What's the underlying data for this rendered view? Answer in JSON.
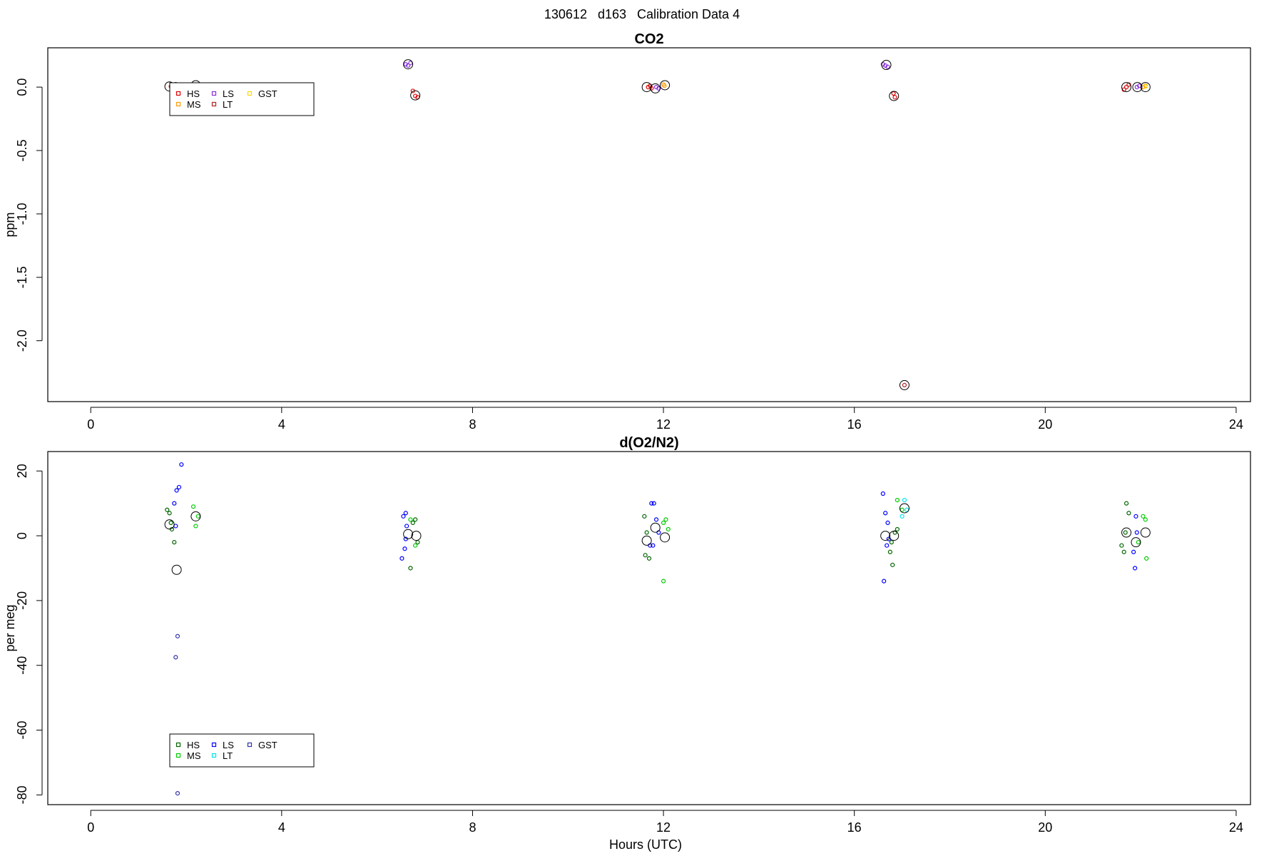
{
  "figure_title": "130612   d163   Calibration Data 4",
  "xlabel": "Hours (UTC)",
  "chart_data": [
    {
      "type": "scatter",
      "title": "CO2",
      "ylabel": "ppm",
      "xlim": [
        -0.9,
        24.3
      ],
      "ylim": [
        -2.48,
        0.31
      ],
      "xticks": [
        0,
        4,
        8,
        12,
        16,
        20,
        24
      ],
      "yticks": [
        0.0,
        -0.5,
        -1.0,
        -1.5,
        -2.0
      ],
      "ytick_labels": [
        "0.0",
        "-0.5",
        "-1.0",
        "-1.5",
        "-2.0"
      ],
      "legend": {
        "placement": "top-left",
        "items": [
          {
            "label": "HS",
            "color": "#dd0000"
          },
          {
            "label": "MS",
            "color": "#ff9900"
          },
          {
            "label": "LS",
            "color": "#8a2be2"
          },
          {
            "label": "LT",
            "color": "#b22222"
          },
          {
            "label": "GST",
            "color": "#ffd700"
          }
        ]
      },
      "series": [
        {
          "name": "HS",
          "color": "#dd0000",
          "points": [
            [
              1.68,
              0.005
            ],
            [
              1.72,
              -0.005
            ],
            [
              6.75,
              -0.03
            ],
            [
              6.8,
              -0.07
            ],
            [
              6.85,
              -0.08
            ],
            [
              11.68,
              0.0
            ],
            [
              11.72,
              0.01
            ],
            [
              11.75,
              -0.01
            ],
            [
              16.82,
              -0.05
            ],
            [
              16.85,
              -0.08
            ],
            [
              21.65,
              -0.02
            ],
            [
              21.7,
              0.0
            ],
            [
              21.75,
              0.02
            ]
          ]
        },
        {
          "name": "MS",
          "color": "#ff9900",
          "points": [
            [
              2.18,
              0.02
            ],
            [
              2.22,
              0.0
            ],
            [
              12.0,
              0.02
            ],
            [
              12.02,
              0.01
            ],
            [
              22.05,
              0.0
            ],
            [
              22.1,
              0.01
            ]
          ]
        },
        {
          "name": "LS",
          "color": "#8a2be2",
          "points": [
            [
              6.6,
              0.18
            ],
            [
              6.65,
              0.17
            ],
            [
              6.7,
              0.19
            ],
            [
              11.85,
              0.0
            ],
            [
              11.9,
              -0.01
            ],
            [
              16.6,
              0.18
            ],
            [
              16.65,
              0.17
            ],
            [
              16.7,
              0.16
            ],
            [
              21.92,
              0.0
            ],
            [
              21.97,
              0.01
            ]
          ]
        },
        {
          "name": "LT",
          "color": "#b22222",
          "points": [
            [
              17.05,
              -2.35
            ],
            [
              1.88,
              0.0
            ]
          ]
        },
        {
          "name": "GST",
          "color": "#ffd700",
          "points": [
            [
              2.2,
              0.015
            ],
            [
              22.1,
              0.005
            ]
          ]
        }
      ],
      "means": [
        [
          1.65,
          0.005
        ],
        [
          1.78,
          0.0
        ],
        [
          2.2,
          0.015
        ],
        [
          6.65,
          0.18
        ],
        [
          6.8,
          -0.065
        ],
        [
          11.65,
          0.0
        ],
        [
          11.83,
          -0.01
        ],
        [
          12.03,
          0.015
        ],
        [
          16.67,
          0.175
        ],
        [
          16.83,
          -0.07
        ],
        [
          17.05,
          -2.35
        ],
        [
          21.7,
          0.0
        ],
        [
          21.93,
          0.0
        ],
        [
          22.1,
          0.0
        ]
      ]
    },
    {
      "type": "scatter",
      "title": "d(O2/N2)",
      "ylabel": "per meg",
      "xlim": [
        -0.9,
        24.3
      ],
      "ylim": [
        -83,
        26
      ],
      "xticks": [
        0,
        4,
        8,
        12,
        16,
        20,
        24
      ],
      "yticks": [
        20,
        0,
        -20,
        -40,
        -60,
        -80
      ],
      "ytick_labels": [
        "20",
        "0",
        "-20",
        "-40",
        "-60",
        "-80"
      ],
      "legend": {
        "placement": "bottom-left",
        "items": [
          {
            "label": "HS",
            "color": "#006400"
          },
          {
            "label": "MS",
            "color": "#00cc00"
          },
          {
            "label": "LS",
            "color": "#0000ff"
          },
          {
            "label": "LT",
            "color": "#00e5ee"
          },
          {
            "label": "GST",
            "color": "#3333aa"
          }
        ]
      },
      "series": [
        {
          "name": "HS",
          "color": "#006400",
          "points": [
            [
              1.6,
              8
            ],
            [
              1.65,
              7
            ],
            [
              1.7,
              2
            ],
            [
              1.75,
              -2
            ],
            [
              1.68,
              4
            ],
            [
              6.75,
              4
            ],
            [
              6.8,
              5
            ],
            [
              6.85,
              -2
            ],
            [
              6.7,
              -10
            ],
            [
              11.6,
              6
            ],
            [
              11.65,
              1
            ],
            [
              11.7,
              -7
            ],
            [
              11.62,
              -6
            ],
            [
              16.75,
              -5
            ],
            [
              16.8,
              -9
            ],
            [
              16.85,
              1
            ],
            [
              16.9,
              2
            ],
            [
              16.78,
              -2
            ],
            [
              21.6,
              -3
            ],
            [
              21.65,
              -5
            ],
            [
              21.7,
              10
            ],
            [
              21.75,
              7
            ],
            [
              21.68,
              1
            ]
          ]
        },
        {
          "name": "MS",
          "color": "#00cc00",
          "points": [
            [
              2.15,
              9
            ],
            [
              2.2,
              3
            ],
            [
              2.25,
              6
            ],
            [
              6.7,
              5
            ],
            [
              6.8,
              -3
            ],
            [
              12.0,
              4
            ],
            [
              12.05,
              5
            ],
            [
              12.1,
              2
            ],
            [
              12.0,
              -14
            ],
            [
              16.9,
              11
            ],
            [
              17.0,
              8
            ],
            [
              21.95,
              -2
            ],
            [
              22.05,
              6
            ],
            [
              22.1,
              5
            ],
            [
              22.12,
              -7
            ]
          ]
        },
        {
          "name": "LS",
          "color": "#0000ff",
          "points": [
            [
              1.75,
              10
            ],
            [
              1.8,
              14
            ],
            [
              1.85,
              15
            ],
            [
              1.9,
              22
            ],
            [
              1.78,
              3
            ],
            [
              6.55,
              6
            ],
            [
              6.6,
              7
            ],
            [
              6.62,
              3
            ],
            [
              6.58,
              -4
            ],
            [
              6.52,
              -7
            ],
            [
              6.6,
              -1
            ],
            [
              11.75,
              10
            ],
            [
              11.8,
              10
            ],
            [
              11.85,
              5
            ],
            [
              11.9,
              1
            ],
            [
              11.72,
              -3
            ],
            [
              11.78,
              -3
            ],
            [
              16.6,
              13
            ],
            [
              16.65,
              7
            ],
            [
              16.7,
              4
            ],
            [
              16.72,
              -1
            ],
            [
              16.68,
              -3
            ],
            [
              16.62,
              -14
            ],
            [
              21.85,
              -5
            ],
            [
              21.9,
              6
            ],
            [
              21.88,
              -10
            ],
            [
              21.92,
              1
            ]
          ]
        },
        {
          "name": "LT",
          "color": "#00e5ee",
          "points": [
            [
              17.0,
              6
            ],
            [
              17.05,
              11
            ],
            [
              17.1,
              8
            ]
          ]
        },
        {
          "name": "GST",
          "color": "#3333aa",
          "points": [
            [
              1.82,
              -31
            ],
            [
              1.78,
              -37.5
            ],
            [
              1.82,
              -79.5
            ]
          ]
        }
      ],
      "means": [
        [
          1.65,
          3.5
        ],
        [
          1.8,
          -10.5
        ],
        [
          2.2,
          6
        ],
        [
          6.65,
          0.5
        ],
        [
          6.82,
          0
        ],
        [
          11.65,
          -1.5
        ],
        [
          11.83,
          2.5
        ],
        [
          12.03,
          -0.5
        ],
        [
          16.65,
          0
        ],
        [
          16.83,
          0
        ],
        [
          17.05,
          8.5
        ],
        [
          21.7,
          1
        ],
        [
          21.9,
          -2
        ],
        [
          22.1,
          1
        ]
      ]
    }
  ]
}
